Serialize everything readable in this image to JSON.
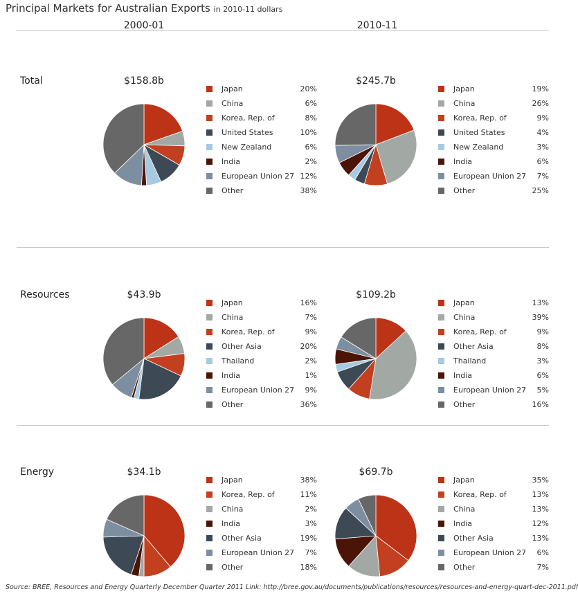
{
  "header": {
    "title": "Principal Markets for Australian Exports",
    "subtitle": "in 2010-11 dollars",
    "col_left": "2000-01",
    "col_right": "2010-11"
  },
  "source": "Source:  BREE, Resources and Energy Quarterly December Quarter 2011   Link:  http://bree.gov.au/documents/publications/resources/resources-and-energy-quart-dec-2011.pdf",
  "colors": {
    "Japan": "#bd3317",
    "China": "#a2a9a5",
    "Korea, Rep. of": "#c2401f",
    "United States": "#3d4a55",
    "Other Asia": "#3d4a55",
    "New Zealand": "#a7c9e2",
    "Thailand": "#a7c9e2",
    "India": "#4a1407",
    "European Union 27": "#7d8ea0",
    "Other": "#676767"
  },
  "chart_data": [
    {
      "type": "pie",
      "section": "Total",
      "period": "2000-01",
      "total": "$158.8b",
      "categories": [
        "Japan",
        "China",
        "Korea, Rep. of",
        "United States",
        "New Zealand",
        "India",
        "European Union 27",
        "Other"
      ],
      "values": [
        20,
        6,
        8,
        10,
        6,
        2,
        12,
        38
      ],
      "labels": [
        "20%",
        "6%",
        "8%",
        "10%",
        "6%",
        "2%",
        "12%",
        "38%"
      ]
    },
    {
      "type": "pie",
      "section": "Total",
      "period": "2010-11",
      "total": "$245.7b",
      "categories": [
        "Japan",
        "China",
        "Korea, Rep. of",
        "United States",
        "New Zealand",
        "India",
        "European Union 27",
        "Other"
      ],
      "values": [
        19,
        26,
        9,
        4,
        3,
        6,
        7,
        25
      ],
      "labels": [
        "19%",
        "26%",
        "9%",
        "4%",
        "3%",
        "6%",
        "7%",
        "25%"
      ]
    },
    {
      "type": "pie",
      "section": "Resources",
      "period": "2000-01",
      "total": "$43.9b",
      "categories": [
        "Japan",
        "China",
        "Korea, Rep. of",
        "Other Asia",
        "Thailand",
        "India",
        "European Union 27",
        "Other"
      ],
      "values": [
        16,
        7,
        9,
        20,
        2,
        1,
        9,
        36
      ],
      "labels": [
        "16%",
        "7%",
        "9%",
        "20%",
        "2%",
        "1%",
        "9%",
        "36%"
      ]
    },
    {
      "type": "pie",
      "section": "Resources",
      "period": "2010-11",
      "total": "$109.2b",
      "categories": [
        "Japan",
        "China",
        "Korea, Rep. of",
        "Other Asia",
        "Thailand",
        "India",
        "European Union 27",
        "Other"
      ],
      "values": [
        13,
        39,
        9,
        8,
        3,
        6,
        5,
        16
      ],
      "labels": [
        "13%",
        "39%",
        "9%",
        "8%",
        "3%",
        "6%",
        "5%",
        "16%"
      ]
    },
    {
      "type": "pie",
      "section": "Energy",
      "period": "2000-01",
      "total": "$34.1b",
      "categories": [
        "Japan",
        "Korea, Rep. of",
        "China",
        "India",
        "Other Asia",
        "European Union 27",
        "Other"
      ],
      "values": [
        38,
        11,
        2,
        3,
        19,
        7,
        18
      ],
      "labels": [
        "38%",
        "11%",
        "2%",
        "3%",
        "19%",
        "7%",
        "18%"
      ]
    },
    {
      "type": "pie",
      "section": "Energy",
      "period": "2010-11",
      "total": "$69.7b",
      "categories": [
        "Japan",
        "Korea, Rep. of",
        "China",
        "India",
        "Other Asia",
        "European Union 27",
        "Other"
      ],
      "values": [
        35,
        13,
        13,
        12,
        13,
        6,
        7
      ],
      "labels": [
        "35%",
        "13%",
        "13%",
        "12%",
        "13%",
        "6%",
        "7%"
      ]
    }
  ]
}
